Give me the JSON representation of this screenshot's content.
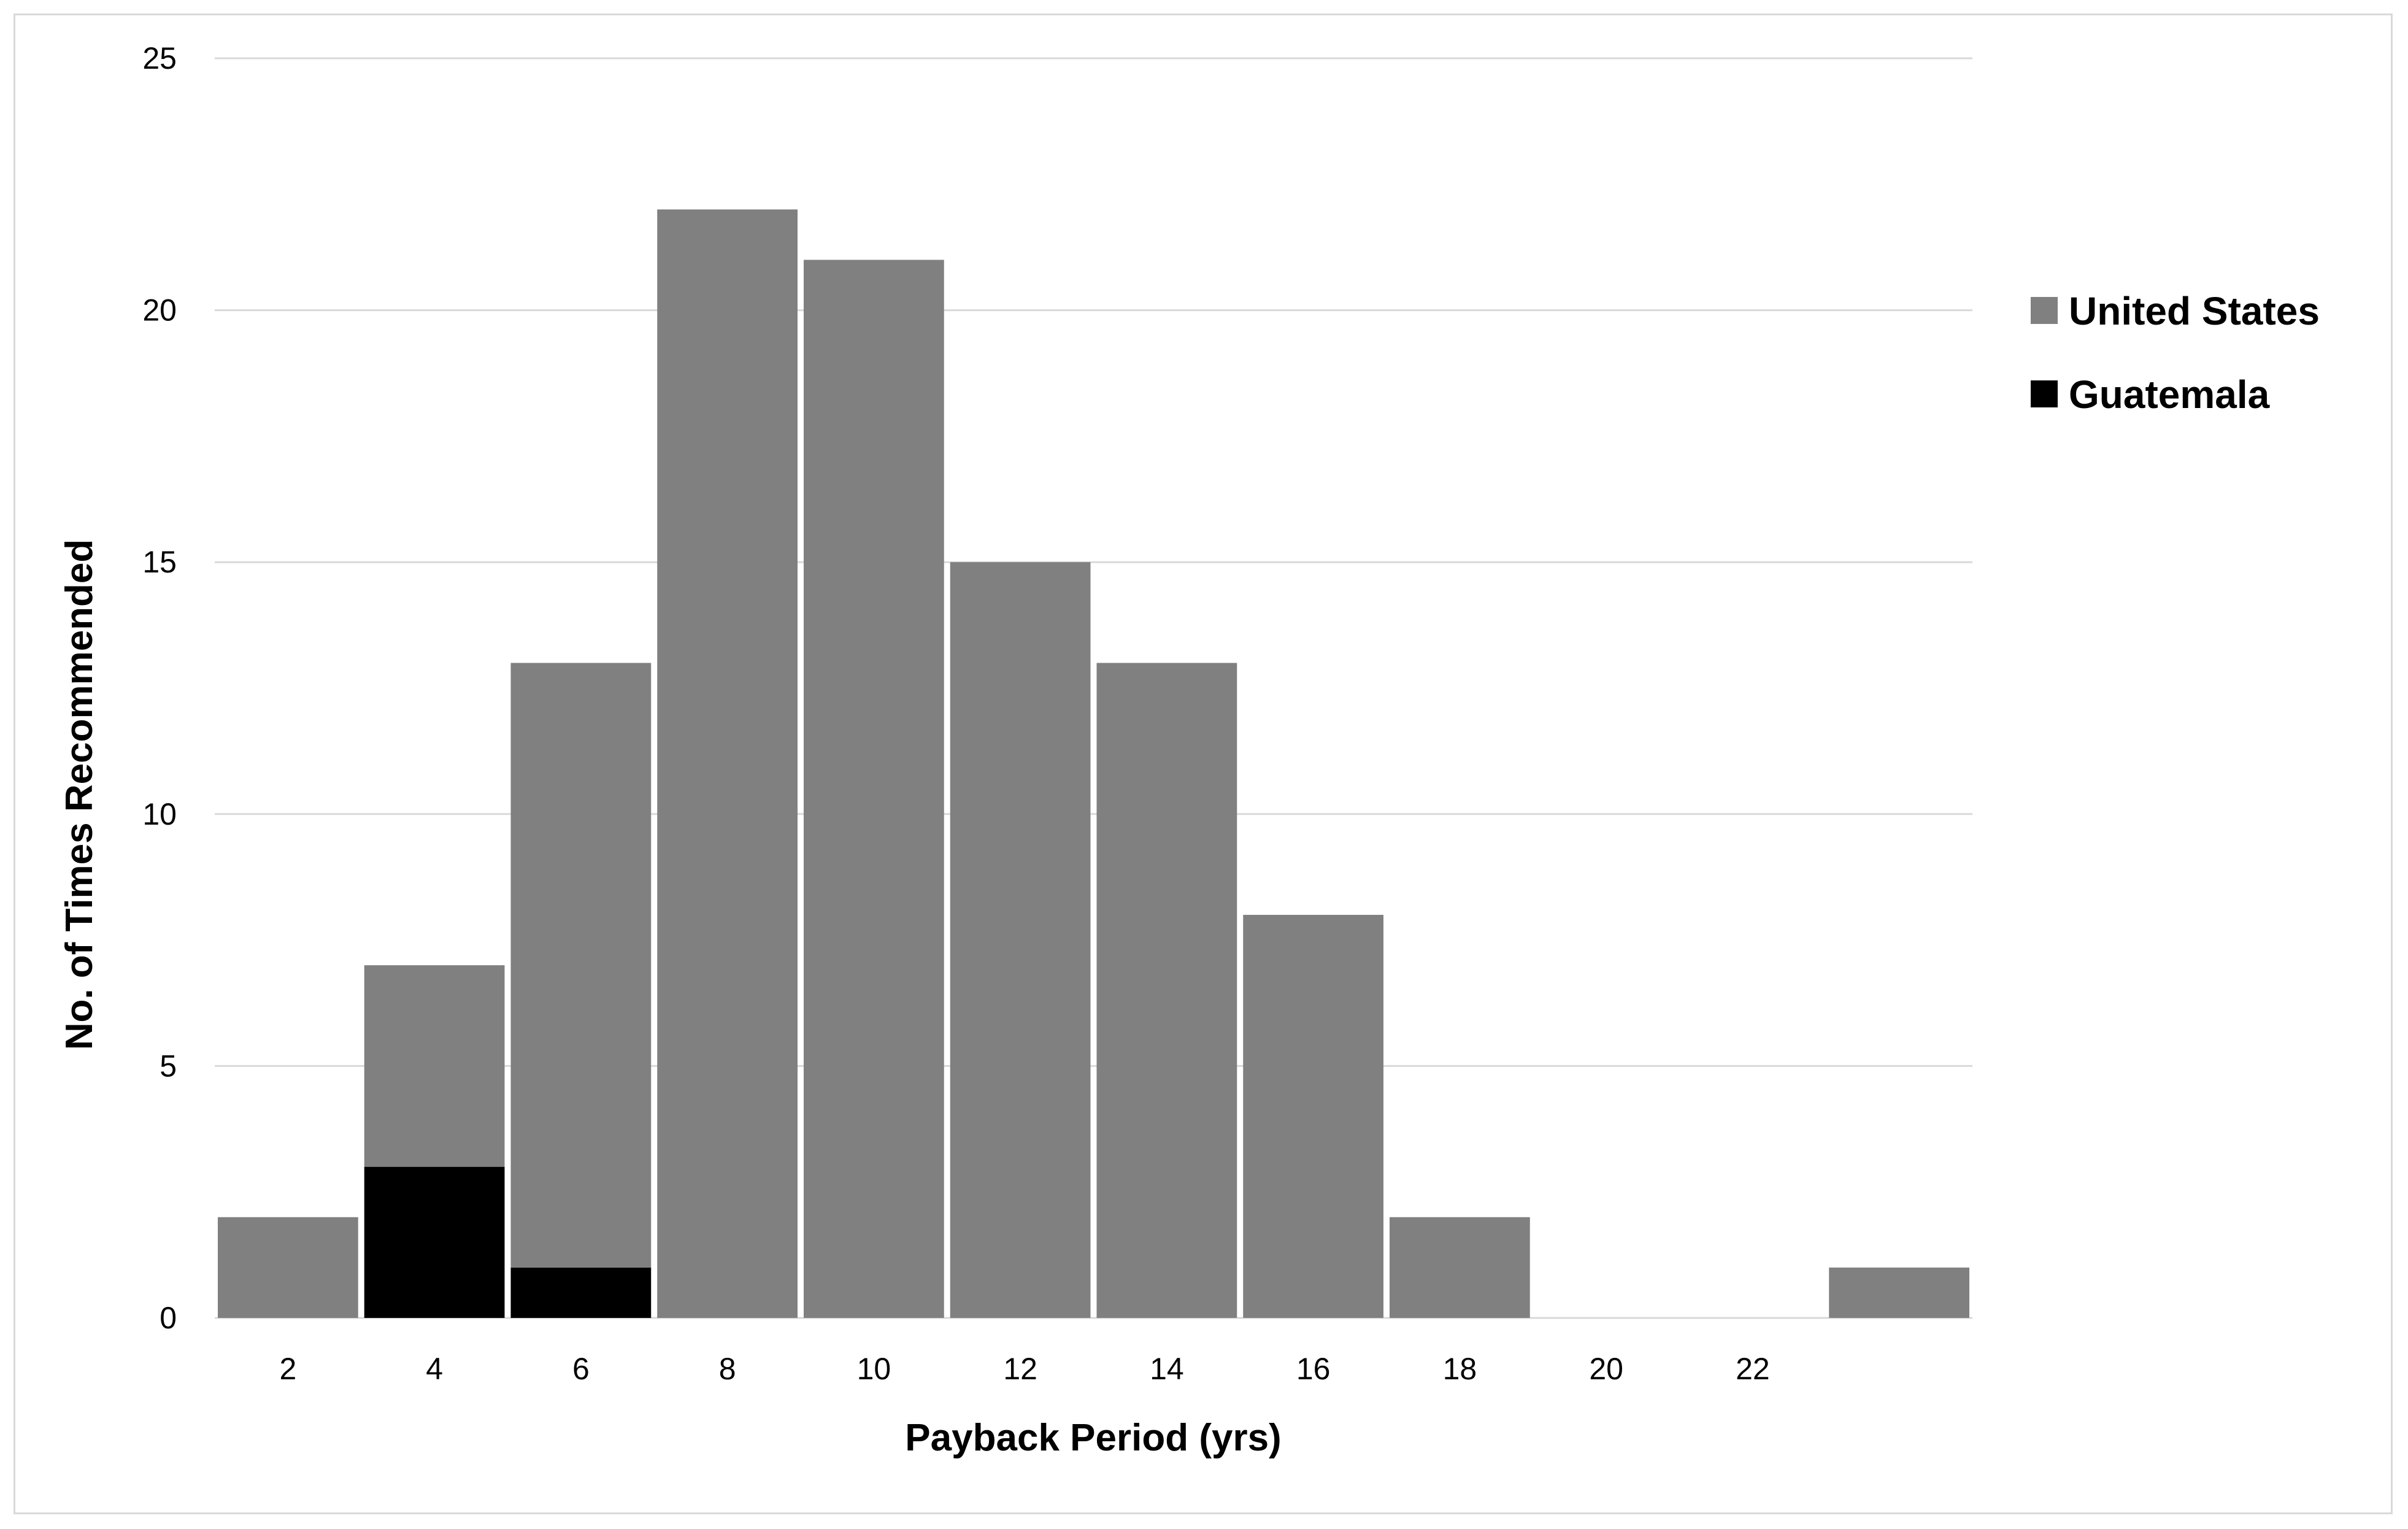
{
  "chart_data": {
    "type": "bar",
    "stacked": true,
    "categories": [
      "2",
      "4",
      "6",
      "8",
      "10",
      "12",
      "14",
      "16",
      "18",
      "20",
      "22",
      ""
    ],
    "series": [
      {
        "name": "Guatemala",
        "color": "#000000",
        "values": [
          0,
          3,
          1,
          0,
          0,
          0,
          0,
          0,
          0,
          0,
          0,
          0
        ]
      },
      {
        "name": "United States",
        "color": "#808080",
        "values": [
          2,
          4,
          12,
          22,
          21,
          15,
          13,
          8,
          2,
          0,
          0,
          1
        ]
      }
    ],
    "legend_order": [
      "United States",
      "Guatemala"
    ],
    "legend_position": "right",
    "xlabel": "Payback Period (yrs)",
    "ylabel": "No. of Times Recommended",
    "ylim": [
      0,
      25
    ],
    "yticks": [
      "0",
      "5",
      "10",
      "15",
      "20",
      "25"
    ],
    "grid": "horizontal"
  }
}
